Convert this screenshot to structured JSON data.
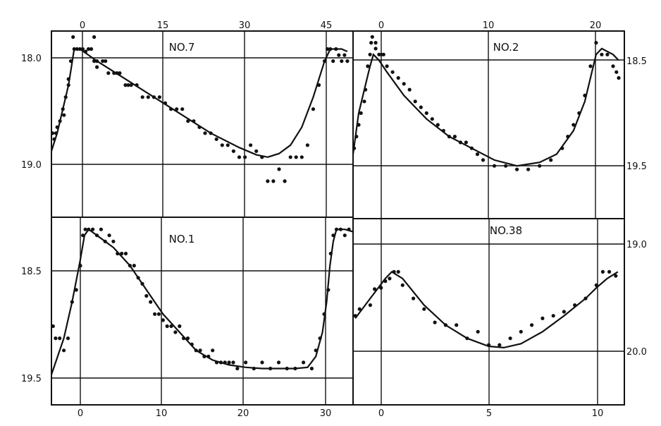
{
  "chart_data": [
    {
      "type": "scatter",
      "title": "NO.7",
      "x_ticks": [
        "0",
        "15",
        "30",
        "45"
      ],
      "y_ticks": [
        "18.0",
        "19.0"
      ],
      "xlim": [
        -3,
        50
      ],
      "ylim": [
        19.5,
        17.95
      ],
      "grid": true,
      "points": [
        [
          -2.8,
          18.8
        ],
        [
          -2.5,
          18.85
        ],
        [
          -2.2,
          18.8
        ],
        [
          -2,
          18.75
        ],
        [
          -1.5,
          18.7
        ],
        [
          -1,
          18.6
        ],
        [
          -0.8,
          18.65
        ],
        [
          -0.5,
          18.5
        ],
        [
          0,
          18.4
        ],
        [
          0,
          18.35
        ],
        [
          0.4,
          18.2
        ],
        [
          0.8,
          18.0
        ],
        [
          1,
          18.1
        ],
        [
          1.5,
          18.1
        ],
        [
          2,
          18.1
        ],
        [
          2.5,
          18.1
        ],
        [
          3,
          18.12
        ],
        [
          3.5,
          18.1
        ],
        [
          4,
          18.1
        ],
        [
          4.5,
          18.0
        ],
        [
          4.5,
          18.2
        ],
        [
          5,
          18.2
        ],
        [
          5,
          18.25
        ],
        [
          6,
          18.2
        ],
        [
          6.5,
          18.2
        ],
        [
          7,
          18.3
        ],
        [
          8,
          18.3
        ],
        [
          8.5,
          18.3
        ],
        [
          9,
          18.3
        ],
        [
          10,
          18.4
        ],
        [
          10.5,
          18.4
        ],
        [
          11,
          18.4
        ],
        [
          12,
          18.4
        ],
        [
          13,
          18.5
        ],
        [
          14,
          18.5
        ],
        [
          15,
          18.5
        ],
        [
          16,
          18.5
        ],
        [
          17,
          18.55
        ],
        [
          18,
          18.6
        ],
        [
          19,
          18.6
        ],
        [
          20,
          18.6
        ],
        [
          21,
          18.7
        ],
        [
          22,
          18.7
        ],
        [
          23,
          18.75
        ],
        [
          24,
          18.8
        ],
        [
          25,
          18.8
        ],
        [
          26,
          18.85
        ],
        [
          27,
          18.9
        ],
        [
          28,
          18.9
        ],
        [
          29,
          18.95
        ],
        [
          30,
          19.0
        ],
        [
          31,
          19.0
        ],
        [
          32,
          18.9
        ],
        [
          33,
          18.95
        ],
        [
          34,
          19.0
        ],
        [
          35,
          19.2
        ],
        [
          36,
          19.2
        ],
        [
          37,
          19.1
        ],
        [
          38,
          19.2
        ],
        [
          39,
          19.0
        ],
        [
          40,
          19.0
        ],
        [
          41,
          19.0
        ],
        [
          42,
          18.9
        ],
        [
          43,
          18.6
        ],
        [
          44,
          18.4
        ],
        [
          45,
          18.2
        ],
        [
          45.5,
          18.1
        ],
        [
          46,
          18.1
        ],
        [
          46.5,
          18.2
        ],
        [
          47,
          18.1
        ],
        [
          47.5,
          18.15
        ],
        [
          48,
          18.2
        ],
        [
          48.5,
          18.15
        ],
        [
          49,
          18.2
        ]
      ],
      "curve": [
        [
          -3,
          18.95
        ],
        [
          -2,
          18.8
        ],
        [
          -1,
          18.6
        ],
        [
          0,
          18.4
        ],
        [
          0.5,
          18.25
        ],
        [
          1,
          18.1
        ],
        [
          2,
          18.1
        ],
        [
          5,
          18.2
        ],
        [
          10,
          18.35
        ],
        [
          15,
          18.5
        ],
        [
          20,
          18.65
        ],
        [
          25,
          18.8
        ],
        [
          30,
          18.92
        ],
        [
          33,
          18.98
        ],
        [
          35,
          19.0
        ],
        [
          37,
          18.97
        ],
        [
          39,
          18.9
        ],
        [
          41,
          18.75
        ],
        [
          43,
          18.5
        ],
        [
          45,
          18.2
        ],
        [
          46,
          18.1
        ],
        [
          48,
          18.1
        ],
        [
          49,
          18.12
        ]
      ]
    },
    {
      "type": "scatter",
      "title": "NO.2",
      "x_ticks": [
        "0",
        "10",
        "20"
      ],
      "y_ticks": [
        "18.5",
        "19.5"
      ],
      "xlim": [
        -1.5,
        22.5
      ],
      "ylim": [
        20.0,
        18.4
      ],
      "grid": true,
      "points": [
        [
          -1.4,
          19.4
        ],
        [
          -1.2,
          19.3
        ],
        [
          -1,
          19.2
        ],
        [
          -0.8,
          19.1
        ],
        [
          -0.5,
          19.0
        ],
        [
          -0.4,
          18.9
        ],
        [
          -0.2,
          18.7
        ],
        [
          0,
          18.6
        ],
        [
          0.1,
          18.5
        ],
        [
          0.2,
          18.45
        ],
        [
          0.5,
          18.5
        ],
        [
          0.5,
          18.55
        ],
        [
          0.8,
          18.6
        ],
        [
          1,
          18.6
        ],
        [
          1.2,
          18.6
        ],
        [
          1.5,
          18.7
        ],
        [
          2,
          18.75
        ],
        [
          2.5,
          18.8
        ],
        [
          3,
          18.85
        ],
        [
          3.5,
          18.9
        ],
        [
          4,
          19.0
        ],
        [
          4.5,
          19.05
        ],
        [
          5,
          19.1
        ],
        [
          5.5,
          19.15
        ],
        [
          6,
          19.2
        ],
        [
          6.5,
          19.25
        ],
        [
          7,
          19.3
        ],
        [
          7.5,
          19.3
        ],
        [
          8,
          19.35
        ],
        [
          8.5,
          19.35
        ],
        [
          9,
          19.4
        ],
        [
          9.5,
          19.45
        ],
        [
          10,
          19.5
        ],
        [
          11,
          19.55
        ],
        [
          12,
          19.55
        ],
        [
          13,
          19.58
        ],
        [
          14,
          19.58
        ],
        [
          15,
          19.55
        ],
        [
          16,
          19.5
        ],
        [
          17,
          19.4
        ],
        [
          17.5,
          19.3
        ],
        [
          18,
          19.2
        ],
        [
          18.5,
          19.1
        ],
        [
          19,
          18.95
        ],
        [
          19.5,
          18.7
        ],
        [
          20,
          18.5
        ],
        [
          20.5,
          18.6
        ],
        [
          21,
          18.6
        ],
        [
          21.5,
          18.7
        ],
        [
          21.8,
          18.75
        ],
        [
          22,
          18.8
        ]
      ],
      "curve": [
        [
          -1.5,
          19.45
        ],
        [
          -1,
          19.1
        ],
        [
          -0.5,
          18.9
        ],
        [
          0,
          18.7
        ],
        [
          0.3,
          18.6
        ],
        [
          0.8,
          18.65
        ],
        [
          1.5,
          18.75
        ],
        [
          3,
          18.95
        ],
        [
          5,
          19.15
        ],
        [
          7,
          19.3
        ],
        [
          9,
          19.4
        ],
        [
          11,
          19.5
        ],
        [
          13,
          19.55
        ],
        [
          15,
          19.52
        ],
        [
          16.5,
          19.45
        ],
        [
          18,
          19.25
        ],
        [
          19,
          19.0
        ],
        [
          19.5,
          18.8
        ],
        [
          20,
          18.6
        ],
        [
          20.5,
          18.55
        ],
        [
          21.5,
          18.6
        ],
        [
          22,
          18.65
        ]
      ]
    },
    {
      "type": "scatter",
      "title": "NO.1",
      "x_ticks": [
        "0",
        "10",
        "20",
        "30"
      ],
      "y_ticks": [
        "18.5",
        "19.5"
      ],
      "xlim": [
        -3.5,
        33
      ],
      "ylim": [
        19.75,
        18.2
      ],
      "grid": true,
      "points": [
        [
          -3.3,
          19.1
        ],
        [
          -3,
          19.2
        ],
        [
          -2.5,
          19.2
        ],
        [
          -2,
          19.3
        ],
        [
          -1.5,
          19.2
        ],
        [
          -1,
          18.9
        ],
        [
          -0.5,
          18.8
        ],
        [
          0,
          18.6
        ],
        [
          0.3,
          18.35
        ],
        [
          0.6,
          18.3
        ],
        [
          1,
          18.3
        ],
        [
          1.5,
          18.3
        ],
        [
          2,
          18.35
        ],
        [
          2.5,
          18.3
        ],
        [
          3,
          18.4
        ],
        [
          3.5,
          18.35
        ],
        [
          4,
          18.4
        ],
        [
          4.5,
          18.5
        ],
        [
          5,
          18.5
        ],
        [
          5.5,
          18.5
        ],
        [
          6,
          18.6
        ],
        [
          6.5,
          18.6
        ],
        [
          7,
          18.7
        ],
        [
          7.5,
          18.75
        ],
        [
          8,
          18.85
        ],
        [
          8.5,
          18.9
        ],
        [
          9,
          19.0
        ],
        [
          9.5,
          19.0
        ],
        [
          10,
          19.05
        ],
        [
          10.5,
          19.1
        ],
        [
          11,
          19.1
        ],
        [
          11.5,
          19.15
        ],
        [
          12,
          19.1
        ],
        [
          12.5,
          19.2
        ],
        [
          13,
          19.2
        ],
        [
          13.5,
          19.25
        ],
        [
          14,
          19.3
        ],
        [
          14.5,
          19.3
        ],
        [
          15,
          19.35
        ],
        [
          15.5,
          19.35
        ],
        [
          16,
          19.3
        ],
        [
          16.5,
          19.4
        ],
        [
          17,
          19.4
        ],
        [
          17.5,
          19.4
        ],
        [
          18,
          19.4
        ],
        [
          18.5,
          19.4
        ],
        [
          19,
          19.45
        ],
        [
          20,
          19.4
        ],
        [
          21,
          19.45
        ],
        [
          22,
          19.4
        ],
        [
          23,
          19.45
        ],
        [
          24,
          19.4
        ],
        [
          25,
          19.45
        ],
        [
          26,
          19.45
        ],
        [
          27,
          19.4
        ],
        [
          28,
          19.45
        ],
        [
          28.5,
          19.3
        ],
        [
          29,
          19.2
        ],
        [
          29.5,
          19.0
        ],
        [
          30,
          18.8
        ],
        [
          30.3,
          18.5
        ],
        [
          30.6,
          18.35
        ],
        [
          31,
          18.3
        ],
        [
          31.5,
          18.3
        ],
        [
          32,
          18.35
        ],
        [
          32.5,
          18.3
        ]
      ],
      "curve": [
        [
          -3.5,
          19.5
        ],
        [
          -2,
          19.2
        ],
        [
          -1,
          18.9
        ],
        [
          0,
          18.55
        ],
        [
          0.5,
          18.35
        ],
        [
          1,
          18.3
        ],
        [
          2,
          18.35
        ],
        [
          4,
          18.45
        ],
        [
          6,
          18.6
        ],
        [
          8,
          18.8
        ],
        [
          10,
          19.0
        ],
        [
          12,
          19.15
        ],
        [
          14,
          19.3
        ],
        [
          16,
          19.38
        ],
        [
          18,
          19.42
        ],
        [
          20,
          19.44
        ],
        [
          22,
          19.45
        ],
        [
          24,
          19.45
        ],
        [
          26,
          19.45
        ],
        [
          27.5,
          19.44
        ],
        [
          28.5,
          19.35
        ],
        [
          29.3,
          19.15
        ],
        [
          29.8,
          18.9
        ],
        [
          30.2,
          18.6
        ],
        [
          30.6,
          18.4
        ],
        [
          31,
          18.3
        ],
        [
          32,
          18.3
        ],
        [
          33,
          18.32
        ]
      ]
    },
    {
      "type": "scatter",
      "title": "NO.38",
      "x_ticks": [
        "0",
        "5",
        "10"
      ],
      "y_ticks": [
        "19.0",
        "20.0"
      ],
      "xlim": [
        -1.3,
        11.3
      ],
      "ylim": [
        20.3,
        18.9
      ],
      "grid": true,
      "points": [
        [
          -1.2,
          19.63
        ],
        [
          -1,
          19.58
        ],
        [
          -0.5,
          19.55
        ],
        [
          -0.3,
          19.43
        ],
        [
          0,
          19.42
        ],
        [
          0.2,
          19.37
        ],
        [
          0.4,
          19.35
        ],
        [
          0.6,
          19.3
        ],
        [
          0.8,
          19.3
        ],
        [
          1,
          19.4
        ],
        [
          1.5,
          19.5
        ],
        [
          2,
          19.58
        ],
        [
          2.5,
          19.68
        ],
        [
          3,
          19.7
        ],
        [
          3.5,
          19.7
        ],
        [
          4,
          19.8
        ],
        [
          4.5,
          19.75
        ],
        [
          5,
          19.85
        ],
        [
          5.5,
          19.85
        ],
        [
          6,
          19.8
        ],
        [
          6.5,
          19.75
        ],
        [
          7,
          19.7
        ],
        [
          7.5,
          19.65
        ],
        [
          8,
          19.63
        ],
        [
          8.5,
          19.6
        ],
        [
          9,
          19.55
        ],
        [
          9.5,
          19.5
        ],
        [
          10,
          19.4
        ],
        [
          10.3,
          19.3
        ],
        [
          10.6,
          19.3
        ],
        [
          10.9,
          19.33
        ]
      ],
      "curve": [
        [
          -1.2,
          19.65
        ],
        [
          -0.5,
          19.5
        ],
        [
          0.2,
          19.35
        ],
        [
          0.5,
          19.3
        ],
        [
          1,
          19.35
        ],
        [
          2,
          19.55
        ],
        [
          3,
          19.7
        ],
        [
          4,
          19.8
        ],
        [
          5,
          19.86
        ],
        [
          5.7,
          19.87
        ],
        [
          6.5,
          19.84
        ],
        [
          7.5,
          19.75
        ],
        [
          8.5,
          19.63
        ],
        [
          9.5,
          19.5
        ],
        [
          10,
          19.42
        ],
        [
          10.5,
          19.35
        ],
        [
          11,
          19.3
        ]
      ]
    }
  ]
}
